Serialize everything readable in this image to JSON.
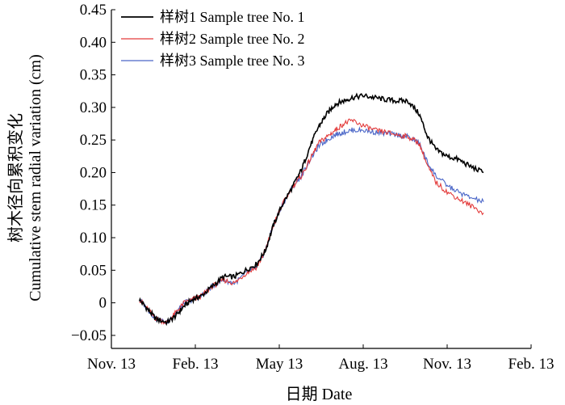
{
  "chart_data": {
    "type": "line",
    "xlabel": "日期 Date",
    "ylabel_cn": "树木径向累积变化",
    "ylabel_en": "Cumulative stem radial variation (cm)",
    "x_ticks": [
      "Nov. 13",
      "Feb. 13",
      "May 13",
      "Aug. 13",
      "Nov. 13",
      "Feb. 13"
    ],
    "xlim": [
      0,
      15
    ],
    "ylim": [
      -0.07,
      0.45
    ],
    "y_ticks": [
      -0.05,
      0,
      0.05,
      0.1,
      0.15,
      0.2,
      0.25,
      0.3,
      0.35,
      0.4,
      0.45
    ],
    "y_tick_labels": [
      "−0.05",
      "0",
      "0.05",
      "0.10",
      "0.15",
      "0.20",
      "0.25",
      "0.30",
      "0.35",
      "0.40",
      "0.45"
    ],
    "grid": false,
    "legend_position": "top-left",
    "series": [
      {
        "name": "样树1 Sample tree No. 1",
        "color": "#000000",
        "x": [
          1.0,
          1.3,
          1.6,
          2.0,
          2.3,
          2.6,
          2.9,
          3.2,
          3.6,
          4.0,
          4.4,
          4.8,
          5.2,
          5.5,
          5.8,
          6.1,
          6.5,
          6.8,
          7.1,
          7.4,
          7.7,
          8.0,
          8.3,
          8.6,
          9.0,
          9.4,
          9.8,
          10.2,
          10.6,
          11.0,
          11.3,
          11.6,
          12.0,
          12.4,
          12.8,
          13.3
        ],
        "y": [
          0.005,
          -0.01,
          -0.025,
          -0.03,
          -0.02,
          -0.005,
          0.005,
          0.01,
          0.025,
          0.04,
          0.04,
          0.05,
          0.06,
          0.08,
          0.12,
          0.15,
          0.18,
          0.205,
          0.24,
          0.27,
          0.29,
          0.305,
          0.31,
          0.315,
          0.318,
          0.315,
          0.312,
          0.31,
          0.31,
          0.29,
          0.255,
          0.235,
          0.225,
          0.22,
          0.21,
          0.2
        ]
      },
      {
        "name": "样树2 Sample tree No. 2",
        "color": "#e33a3a",
        "x": [
          1.0,
          1.3,
          1.6,
          2.0,
          2.3,
          2.6,
          2.9,
          3.2,
          3.6,
          4.0,
          4.4,
          4.8,
          5.2,
          5.5,
          5.8,
          6.1,
          6.5,
          6.8,
          7.1,
          7.4,
          7.7,
          8.0,
          8.3,
          8.6,
          9.0,
          9.4,
          9.8,
          10.2,
          10.6,
          11.0,
          11.3,
          11.6,
          12.0,
          12.4,
          12.8,
          13.3
        ],
        "y": [
          0.005,
          -0.01,
          -0.025,
          -0.03,
          -0.015,
          0.0,
          0.005,
          0.01,
          0.025,
          0.035,
          0.03,
          0.045,
          0.055,
          0.08,
          0.12,
          0.15,
          0.18,
          0.195,
          0.22,
          0.245,
          0.255,
          0.265,
          0.275,
          0.28,
          0.272,
          0.265,
          0.262,
          0.258,
          0.255,
          0.245,
          0.21,
          0.185,
          0.17,
          0.16,
          0.15,
          0.138
        ]
      },
      {
        "name": "样树3 Sample tree No. 3",
        "color": "#4a66c8",
        "x": [
          1.0,
          1.3,
          1.6,
          2.0,
          2.3,
          2.6,
          2.9,
          3.2,
          3.6,
          4.0,
          4.4,
          4.8,
          5.2,
          5.5,
          5.8,
          6.1,
          6.5,
          6.8,
          7.1,
          7.4,
          7.7,
          8.0,
          8.3,
          8.6,
          9.0,
          9.4,
          9.8,
          10.2,
          10.6,
          11.0,
          11.3,
          11.6,
          12.0,
          12.4,
          12.8,
          13.3
        ],
        "y": [
          0.005,
          -0.01,
          -0.025,
          -0.03,
          -0.015,
          0.0,
          0.005,
          0.01,
          0.025,
          0.035,
          0.03,
          0.045,
          0.055,
          0.08,
          0.12,
          0.15,
          0.18,
          0.195,
          0.22,
          0.24,
          0.25,
          0.258,
          0.262,
          0.265,
          0.265,
          0.262,
          0.26,
          0.258,
          0.255,
          0.245,
          0.215,
          0.195,
          0.18,
          0.17,
          0.162,
          0.155
        ]
      }
    ]
  }
}
